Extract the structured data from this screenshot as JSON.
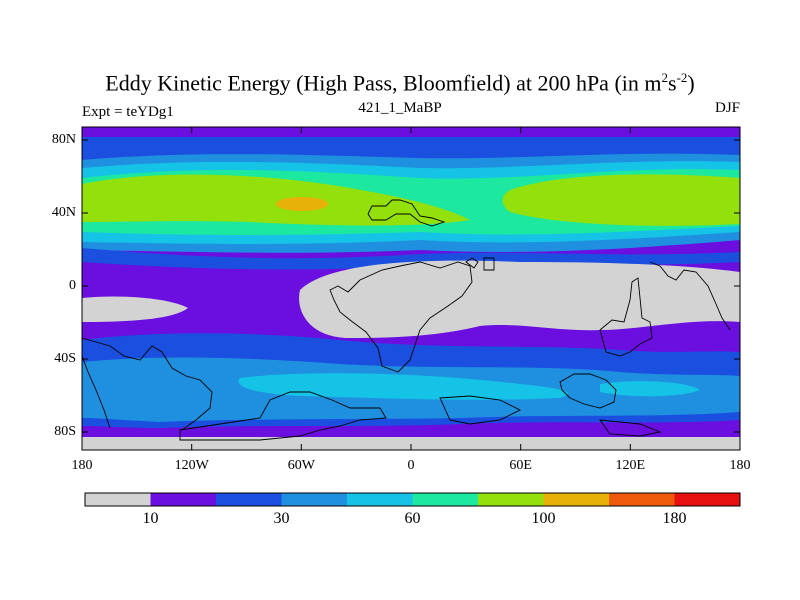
{
  "title": {
    "main": "Eddy Kinetic Energy (High Pass, Bloomfield) at 200 hPa (in m",
    "sup1": "2",
    "mid": "s",
    "sup2": "-2",
    "end": ")"
  },
  "subtitle": "421_1_MaBP",
  "left_label": "Expt = teYDg1",
  "right_label": "DJF",
  "y_ticks": [
    "80N",
    "40N",
    "0",
    "40S",
    "80S"
  ],
  "x_ticks": [
    "180",
    "120W",
    "60W",
    "0",
    "60E",
    "120E",
    "180"
  ],
  "colorbar": {
    "colors": [
      "#d3d3d3",
      "#6a0fe0",
      "#1a4fe0",
      "#1f8fe0",
      "#15c3e6",
      "#1de8a0",
      "#93e00a",
      "#e8b10a",
      "#ee5a0a",
      "#e61010"
    ],
    "labels": [
      "10",
      "30",
      "60",
      "100",
      "180"
    ]
  },
  "map_colors": {
    "grey": "#d3d3d3",
    "violet": "#6a0fe0",
    "blue": "#1a4fe0",
    "mid_blue": "#1f8fe0",
    "light_blue": "#15c3e6",
    "teal": "#1de8a0",
    "green": "#93e00a",
    "orange": "#e8b10a",
    "coast": "#000000"
  }
}
